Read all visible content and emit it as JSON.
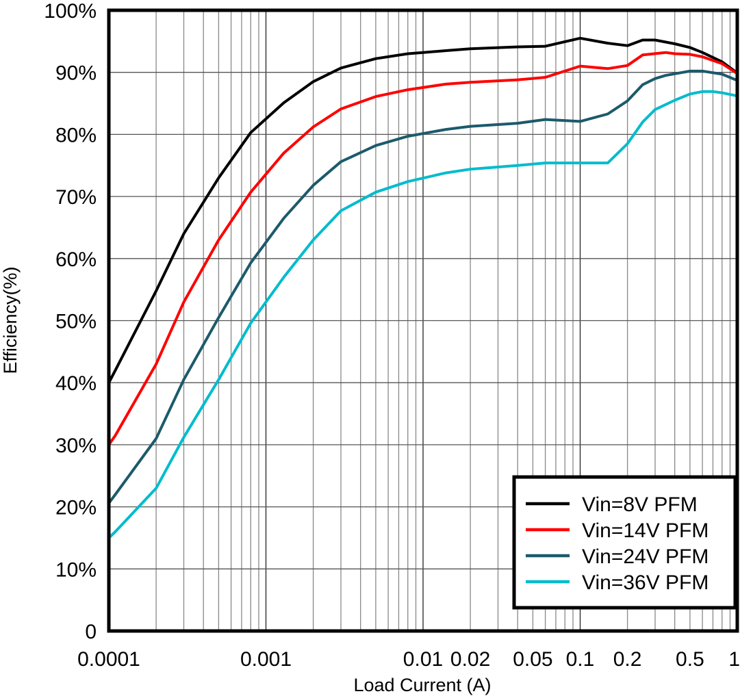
{
  "chart_data": {
    "type": "line",
    "title": "",
    "xlabel": "Load Current (A)",
    "ylabel": "Efficiency(%)",
    "xscale": "log",
    "xlim": [
      0.0001,
      1
    ],
    "ylim": [
      0,
      100
    ],
    "grid": true,
    "legend_position": "bottom-right",
    "x_tick_labels": [
      {
        "value": 0.0001,
        "label": "0.0001"
      },
      {
        "value": 0.001,
        "label": "0.001"
      },
      {
        "value": 0.01,
        "label": "0.01"
      },
      {
        "value": 0.02,
        "label": "0.02"
      },
      {
        "value": 0.05,
        "label": "0.05"
      },
      {
        "value": 0.1,
        "label": "0.1"
      },
      {
        "value": 0.2,
        "label": "0.2"
      },
      {
        "value": 0.5,
        "label": "0.5"
      },
      {
        "value": 1,
        "label": "1"
      }
    ],
    "y_tick_labels": [
      {
        "value": 0,
        "label": "0"
      },
      {
        "value": 10,
        "label": "10%"
      },
      {
        "value": 20,
        "label": "20%"
      },
      {
        "value": 30,
        "label": "30%"
      },
      {
        "value": 40,
        "label": "40%"
      },
      {
        "value": 50,
        "label": "50%"
      },
      {
        "value": 60,
        "label": "60%"
      },
      {
        "value": 70,
        "label": "70%"
      },
      {
        "value": 80,
        "label": "80%"
      },
      {
        "value": 90,
        "label": "90%"
      },
      {
        "value": 100,
        "label": "100%"
      }
    ],
    "series": [
      {
        "name": "Vin=8V PFM",
        "color": "#000000",
        "x": [
          0.0001,
          0.00011,
          0.0002,
          0.0003,
          0.0005,
          0.0008,
          0.0013,
          0.002,
          0.003,
          0.005,
          0.008,
          0.01,
          0.014,
          0.02,
          0.04,
          0.06,
          0.1,
          0.15,
          0.2,
          0.25,
          0.3,
          0.4,
          0.5,
          0.6,
          0.8,
          1
        ],
        "y": [
          40,
          42,
          54.8,
          64,
          73,
          80.3,
          85.1,
          88.5,
          90.7,
          92.2,
          93,
          93.2,
          93.5,
          93.8,
          94.1,
          94.2,
          95.5,
          94.7,
          94.3,
          95.2,
          95.2,
          94.6,
          94,
          93.2,
          91.7,
          89.9
        ]
      },
      {
        "name": "Vin=14V PFM",
        "color": "#ff0000",
        "x": [
          0.0001,
          0.00011,
          0.0002,
          0.0003,
          0.0005,
          0.0008,
          0.0013,
          0.002,
          0.003,
          0.005,
          0.008,
          0.014,
          0.02,
          0.04,
          0.06,
          0.1,
          0.15,
          0.2,
          0.25,
          0.35,
          0.4,
          0.5,
          0.6,
          0.8,
          1
        ],
        "y": [
          30,
          31.5,
          43,
          53,
          63,
          70.7,
          77,
          81.2,
          84.1,
          86.1,
          87.2,
          88.1,
          88.4,
          88.8,
          89.2,
          91,
          90.6,
          91.1,
          92.8,
          93.2,
          93,
          92.9,
          92.5,
          91.4,
          89.8
        ]
      },
      {
        "name": "Vin=24V PFM",
        "color": "#1b5a6b",
        "x": [
          0.0001,
          0.00011,
          0.0002,
          0.0003,
          0.0005,
          0.0008,
          0.0013,
          0.002,
          0.003,
          0.005,
          0.008,
          0.014,
          0.02,
          0.04,
          0.06,
          0.1,
          0.15,
          0.2,
          0.25,
          0.3,
          0.35,
          0.5,
          0.6,
          0.8,
          1
        ],
        "y": [
          20.6,
          22,
          31,
          40.5,
          50.5,
          59.3,
          66.5,
          71.8,
          75.6,
          78.2,
          79.7,
          80.8,
          81.3,
          81.8,
          82.4,
          82.1,
          83.3,
          85.4,
          88,
          89,
          89.5,
          90.2,
          90.2,
          89.7,
          88.7
        ]
      },
      {
        "name": "Vin=36V PFM",
        "color": "#00bccd",
        "x": [
          0.0001,
          0.00011,
          0.0002,
          0.0003,
          0.0005,
          0.0008,
          0.0013,
          0.002,
          0.003,
          0.005,
          0.008,
          0.014,
          0.02,
          0.04,
          0.06,
          0.1,
          0.15,
          0.2,
          0.25,
          0.3,
          0.4,
          0.5,
          0.6,
          0.7,
          0.8,
          1
        ],
        "y": [
          15,
          16,
          23,
          31.2,
          40.5,
          49.6,
          57,
          63,
          67.7,
          70.7,
          72.4,
          73.8,
          74.4,
          75,
          75.4,
          75.4,
          75.4,
          78.5,
          82,
          84,
          85.5,
          86.5,
          86.9,
          86.9,
          86.7,
          86.2
        ]
      }
    ]
  }
}
